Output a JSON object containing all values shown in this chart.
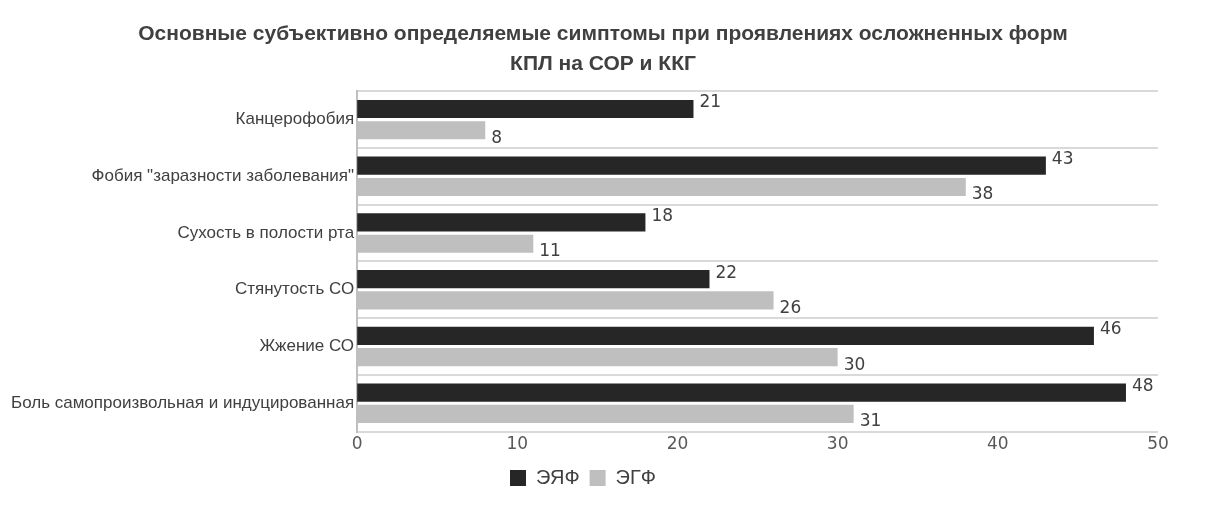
{
  "chart_data": {
    "type": "bar",
    "orientation": "horizontal",
    "title": "Основные субъективно определяемые симптомы при проявлениях осложненных форм КПЛ на СОР и ККГ",
    "categories": [
      "Канцерофобия",
      "Фобия \"заразности заболевания\"",
      "Сухость в полости рта",
      "Стянутость СО",
      "Жжение СО",
      "Боль самопроизвольная и индуцированная"
    ],
    "series": [
      {
        "name": "ЭЯФ",
        "color": "#262626",
        "values": [
          21,
          43,
          18,
          22,
          46,
          48
        ]
      },
      {
        "name": "ЭГФ",
        "color": "#bfbfbf",
        "values": [
          8,
          38,
          11,
          26,
          30,
          31
        ]
      }
    ],
    "xlim": [
      0,
      50
    ],
    "xticks": [
      0,
      10,
      20,
      30,
      40,
      50
    ],
    "grid": "y",
    "legend": "bottom",
    "data_labels": true
  }
}
